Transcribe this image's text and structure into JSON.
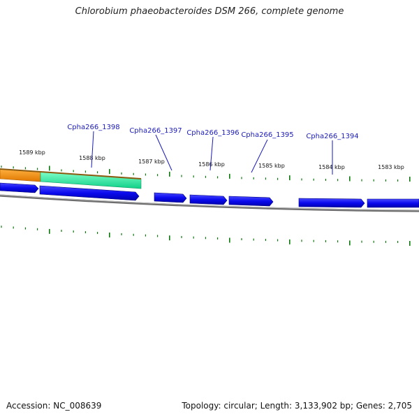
{
  "title": "Chlorobium phaeobacteroides DSM 266, complete genome",
  "footer": {
    "accession": "Accession: NC_008639",
    "summary": "Topology: circular; Length: 3,133,902 bp; Genes: 2,705"
  },
  "colors": {
    "gene": "#0a0aee",
    "orange_feature": "#ff8c00",
    "green_feature": "#22ee99",
    "tick": "#0a7a0a",
    "backbone": "#808080",
    "label": "#1a1ab8"
  },
  "kbp_labels": [
    "1589 kbp",
    "1588 kbp",
    "1587 kbp",
    "1586 kbp",
    "1585 kbp",
    "1584 kbp",
    "1583 kbp"
  ],
  "gene_labels": [
    "Cpha266_1398",
    "Cpha266_1397",
    "Cpha266_1396",
    "Cpha266_1395",
    "Cpha266_1394"
  ]
}
